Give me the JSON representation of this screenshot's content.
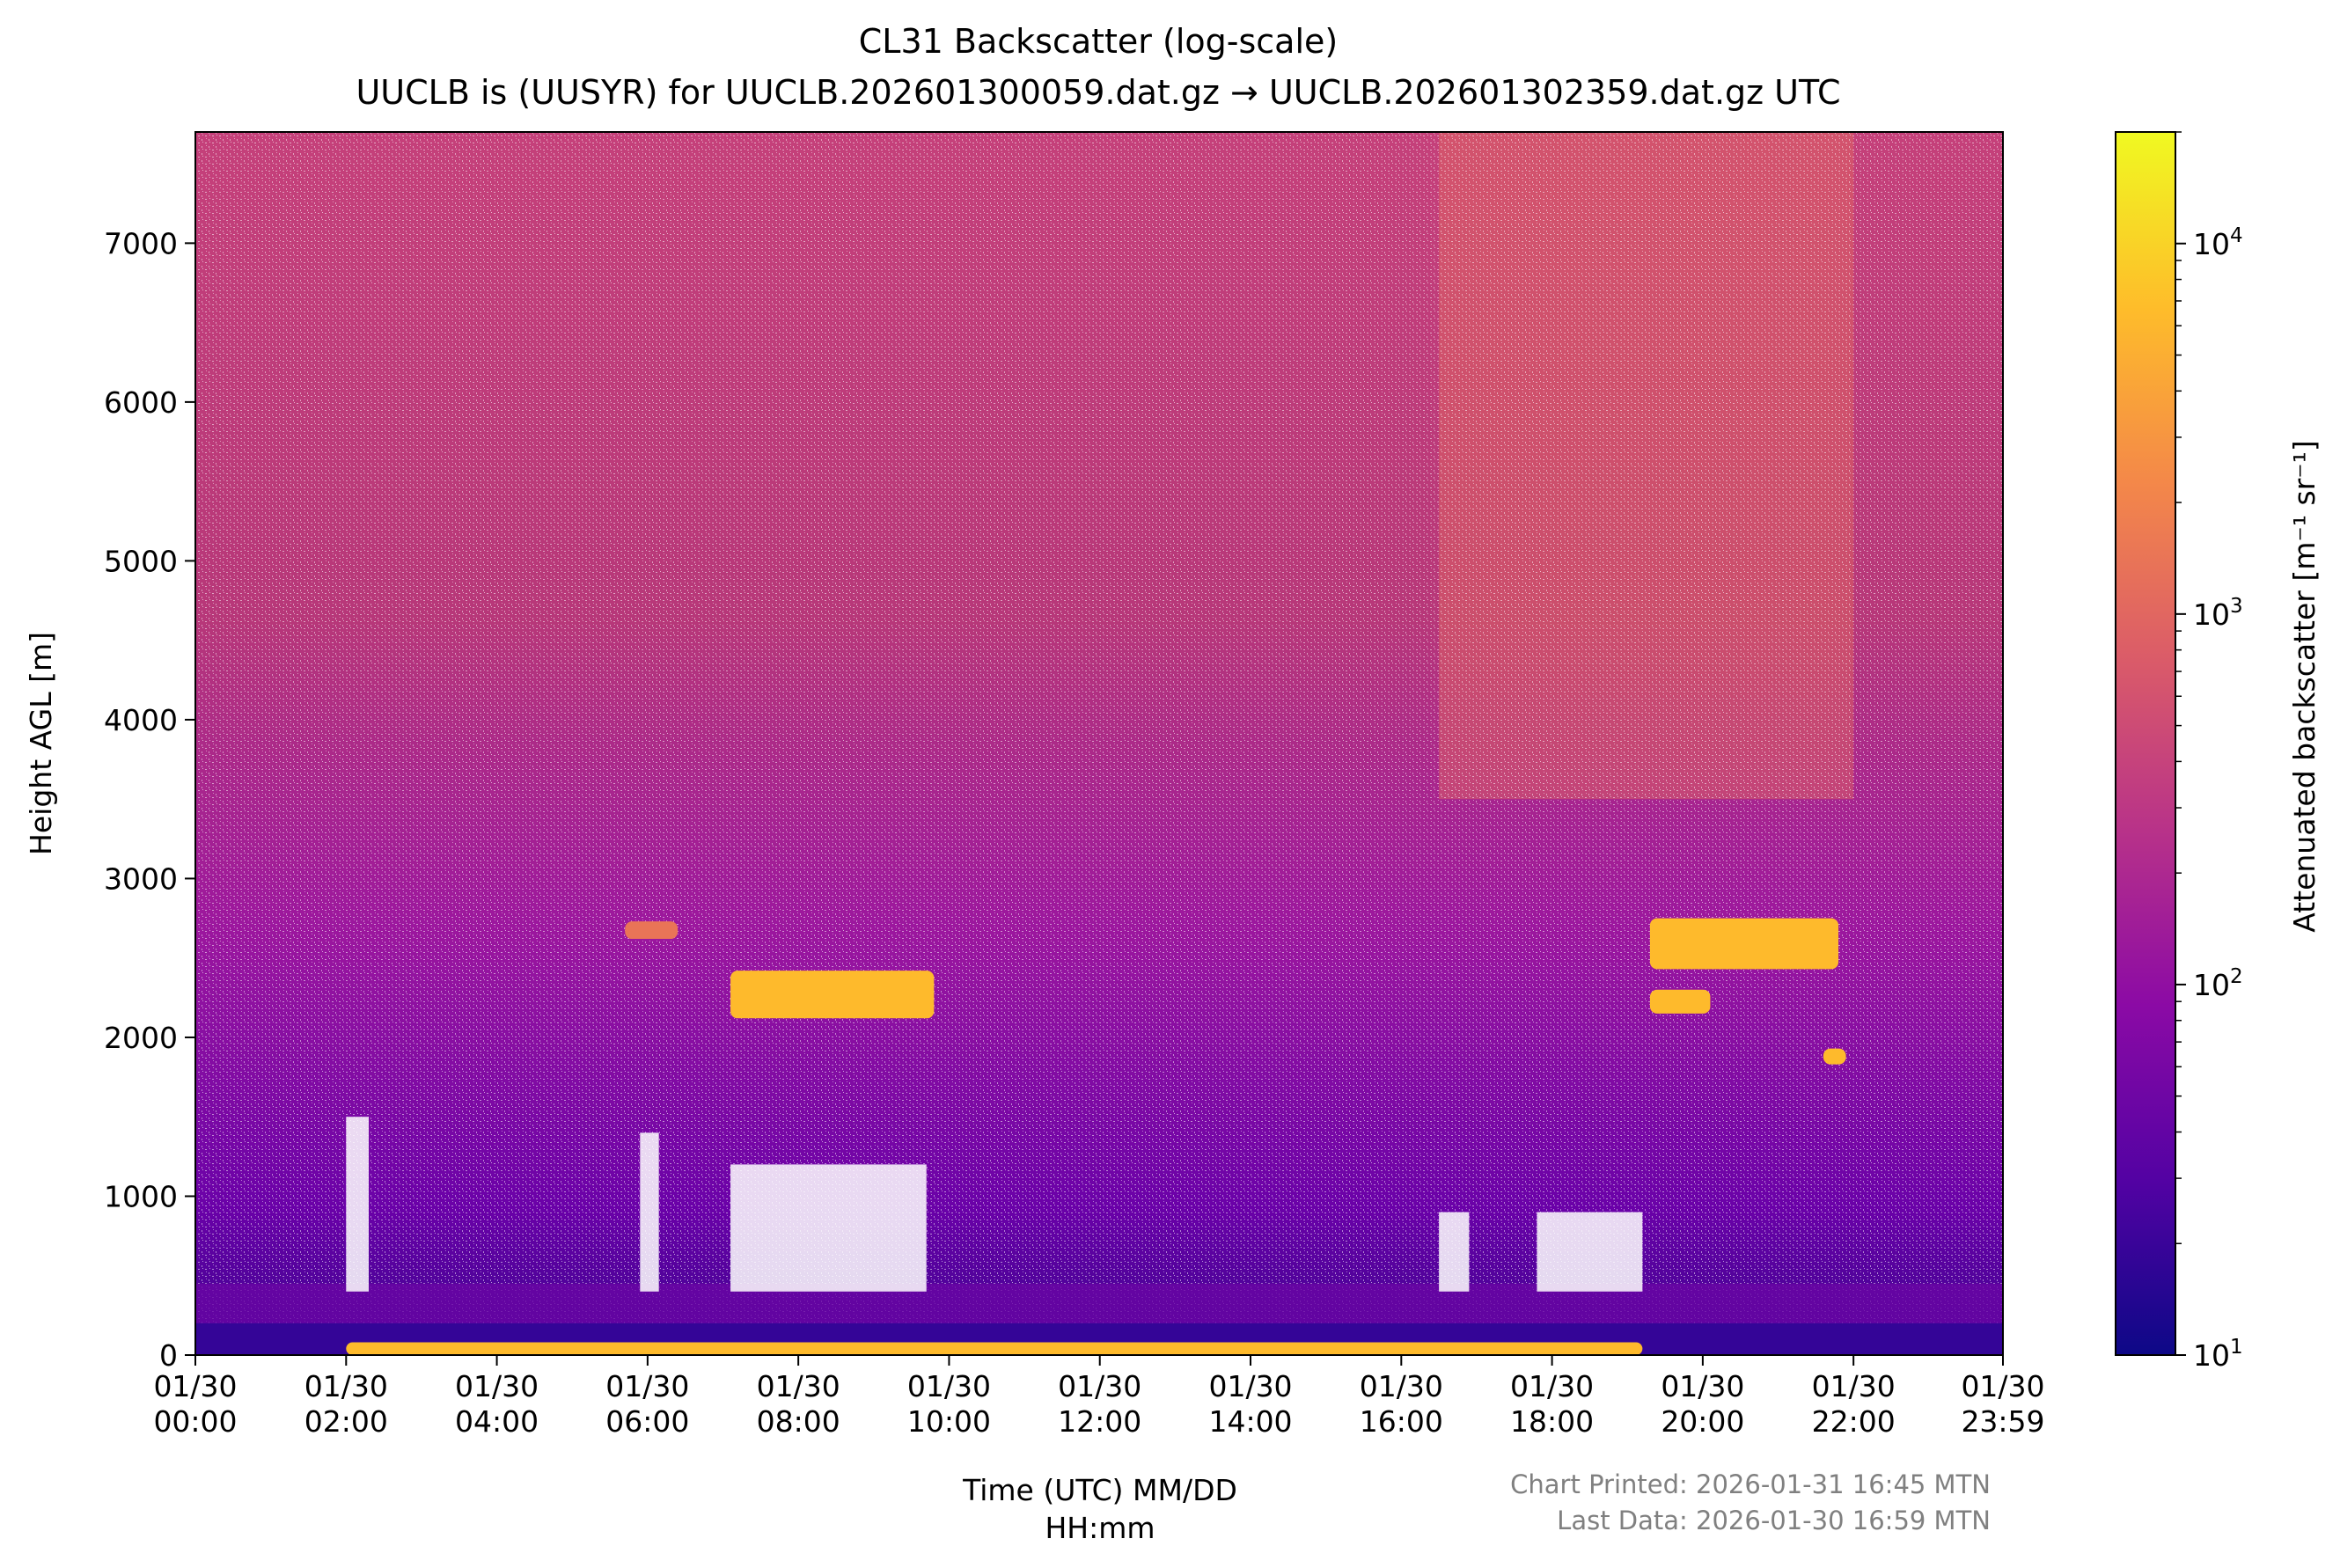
{
  "chart_data": {
    "type": "heatmap",
    "title": "CL31 Backscatter (log-scale)",
    "subtitle": "UUCLB is (UUSYR) for UUCLB.202601300059.dat.gz → UUCLB.202601302359.dat.gz UTC",
    "xlabel_line1": "Time (UTC) MM/DD",
    "xlabel_line2": "HH:mm",
    "ylabel": "Height AGL [m]",
    "x_ticks": [
      {
        "date": "01/30",
        "time": "00:00",
        "hour": 0
      },
      {
        "date": "01/30",
        "time": "02:00",
        "hour": 2
      },
      {
        "date": "01/30",
        "time": "04:00",
        "hour": 4
      },
      {
        "date": "01/30",
        "time": "06:00",
        "hour": 6
      },
      {
        "date": "01/30",
        "time": "08:00",
        "hour": 8
      },
      {
        "date": "01/30",
        "time": "10:00",
        "hour": 10
      },
      {
        "date": "01/30",
        "time": "12:00",
        "hour": 12
      },
      {
        "date": "01/30",
        "time": "14:00",
        "hour": 14
      },
      {
        "date": "01/30",
        "time": "16:00",
        "hour": 16
      },
      {
        "date": "01/30",
        "time": "18:00",
        "hour": 18
      },
      {
        "date": "01/30",
        "time": "20:00",
        "hour": 20
      },
      {
        "date": "01/30",
        "time": "22:00",
        "hour": 22
      },
      {
        "date": "01/30",
        "time": "23:59",
        "hour": 23.983
      }
    ],
    "xlim_hours": [
      0,
      23.983
    ],
    "y_ticks": [
      "0",
      "1000",
      "2000",
      "3000",
      "4000",
      "5000",
      "6000",
      "7000"
    ],
    "ylim": [
      0,
      7700
    ],
    "colorbar": {
      "label": "Attenuated backscatter [m⁻¹ sr⁻¹]",
      "scale": "log",
      "range": [
        10,
        20000
      ],
      "ticks": [
        {
          "base": "10",
          "exp": "1",
          "value": 10
        },
        {
          "base": "10",
          "exp": "2",
          "value": 100
        },
        {
          "base": "10",
          "exp": "3",
          "value": 1000
        },
        {
          "base": "10",
          "exp": "4",
          "value": 10000
        }
      ],
      "colormap": "plasma",
      "stops": [
        "#0d0887",
        "#5302a3",
        "#8b0aa5",
        "#b83289",
        "#db5c68",
        "#f48849",
        "#febd2a",
        "#f0f921"
      ]
    },
    "features": [
      {
        "name": "surface layer",
        "start_hour": 2.0,
        "end_hour": 19.2,
        "height_m": [
          0,
          80
        ],
        "level": "high"
      },
      {
        "name": "cloud layer A",
        "start_hour": 5.7,
        "end_hour": 6.4,
        "height_m": [
          2620,
          2730
        ],
        "level": "medium"
      },
      {
        "name": "cloud layer B",
        "start_hour": 7.1,
        "end_hour": 9.8,
        "height_m": [
          2120,
          2420
        ],
        "level": "high"
      },
      {
        "name": "cloud layer C",
        "start_hour": 19.3,
        "end_hour": 21.8,
        "height_m": [
          2430,
          2750
        ],
        "level": "high"
      },
      {
        "name": "cloud layer D",
        "start_hour": 19.3,
        "end_hour": 20.1,
        "height_m": [
          2150,
          2300
        ],
        "level": "high"
      },
      {
        "name": "cloud patch E",
        "start_hour": 21.6,
        "end_hour": 21.9,
        "height_m": [
          1830,
          1930
        ],
        "level": "high"
      }
    ]
  },
  "footer": {
    "printed": "Chart Printed: 2026-01-31 16:45 MTN",
    "last_data": "Last Data: 2026-01-30 16:59 MTN"
  }
}
